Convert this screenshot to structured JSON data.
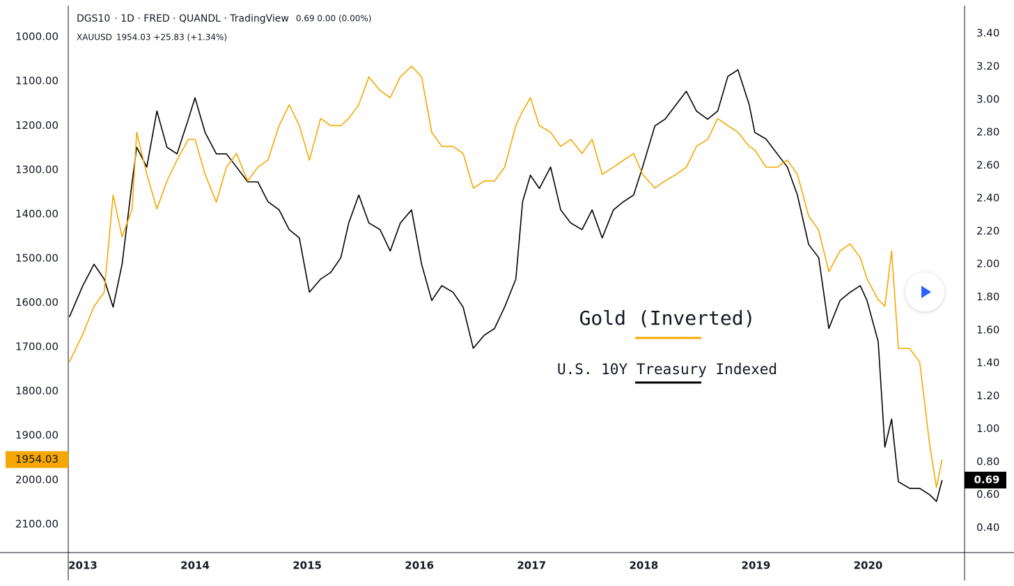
{
  "chart_data": {
    "type": "line",
    "series": [
      {
        "name": "DGS10",
        "details": "· 1D · FRED · QUANDL · TradingView",
        "quote": "0.69 0.00 (0.00%)",
        "color": "#000000",
        "axis": "y2",
        "values": [
          1.68,
          1.87,
          2.0,
          1.91,
          1.74,
          2.0,
          2.5,
          2.71,
          2.59,
          2.93,
          2.71,
          2.67,
          2.88,
          3.01,
          2.8,
          2.67,
          2.67,
          2.59,
          2.5,
          2.5,
          2.38,
          2.33,
          2.21,
          2.16,
          1.83,
          1.91,
          1.95,
          2.04,
          2.25,
          2.42,
          2.25,
          2.21,
          2.08,
          2.25,
          2.33,
          2.0,
          1.78,
          1.87,
          1.83,
          1.74,
          1.49,
          1.57,
          1.61,
          1.74,
          1.91,
          2.38,
          2.54,
          2.46,
          2.59,
          2.33,
          2.25,
          2.21,
          2.33,
          2.16,
          2.33,
          2.38,
          2.42,
          2.59,
          2.84,
          2.88,
          2.97,
          3.05,
          2.93,
          2.88,
          2.93,
          3.14,
          3.18,
          2.97,
          2.8,
          2.76,
          2.67,
          2.59,
          2.42,
          2.12,
          2.04,
          1.61,
          1.78,
          1.83,
          1.87,
          1.78,
          1.53,
          0.89,
          1.06,
          0.68,
          0.64,
          0.64,
          0.6,
          0.56,
          0.69
        ]
      },
      {
        "name": "XAUUSD",
        "quote": "1954.03 +25.83 (+1.34%)",
        "color": "#f5a700",
        "axis": "y",
        "values": [
          1734,
          1671,
          1608,
          1577,
          1357,
          1451,
          1388,
          1215,
          1310,
          1388,
          1325,
          1278,
          1231,
          1231,
          1310,
          1373,
          1294,
          1263,
          1325,
          1294,
          1278,
          1200,
          1153,
          1200,
          1278,
          1184,
          1200,
          1200,
          1184,
          1153,
          1090,
          1121,
          1137,
          1090,
          1066,
          1090,
          1215,
          1247,
          1247,
          1263,
          1341,
          1325,
          1325,
          1294,
          1200,
          1168,
          1137,
          1200,
          1215,
          1247,
          1231,
          1263,
          1231,
          1310,
          1294,
          1278,
          1263,
          1310,
          1341,
          1325,
          1310,
          1294,
          1247,
          1231,
          1184,
          1200,
          1215,
          1247,
          1255,
          1294,
          1294,
          1278,
          1310,
          1404,
          1436,
          1530,
          1483,
          1467,
          1498,
          1546,
          1593,
          1608,
          1483,
          1703,
          1703,
          1734,
          1923,
          2017,
          1954.03
        ]
      }
    ],
    "x": [
      2012.88,
      2013.0,
      2013.1,
      2013.19,
      2013.27,
      2013.35,
      2013.44,
      2013.48,
      2013.57,
      2013.66,
      2013.75,
      2013.84,
      2013.94,
      2014.0,
      2014.09,
      2014.19,
      2014.28,
      2014.37,
      2014.47,
      2014.56,
      2014.65,
      2014.75,
      2014.84,
      2014.93,
      2015.02,
      2015.12,
      2015.21,
      2015.3,
      2015.37,
      2015.46,
      2015.55,
      2015.65,
      2015.74,
      2015.83,
      2015.93,
      2016.02,
      2016.11,
      2016.2,
      2016.3,
      2016.39,
      2016.48,
      2016.58,
      2016.67,
      2016.76,
      2016.86,
      2016.92,
      2016.99,
      2017.07,
      2017.17,
      2017.26,
      2017.35,
      2017.45,
      2017.54,
      2017.63,
      2017.73,
      2017.82,
      2017.91,
      2017.99,
      2018.1,
      2018.19,
      2018.29,
      2018.38,
      2018.47,
      2018.57,
      2018.66,
      2018.75,
      2018.84,
      2018.94,
      2018.99,
      2019.09,
      2019.19,
      2019.28,
      2019.37,
      2019.47,
      2019.56,
      2019.65,
      2019.75,
      2019.84,
      2019.93,
      2019.99,
      2020.09,
      2020.15,
      2020.21,
      2020.27,
      2020.37,
      2020.46,
      2020.55,
      2020.61,
      2020.66
    ],
    "xlim": [
      2012.87,
      2020.86
    ],
    "xticks": [
      2013,
      2014,
      2015,
      2016,
      2017,
      2018,
      2019,
      2020
    ],
    "ylim": [
      929,
      2164
    ],
    "y_inverted": true,
    "yticks": [
      {
        "value": 1000,
        "label": "1000.00"
      },
      {
        "value": 1100,
        "label": "1100.00"
      },
      {
        "value": 1200,
        "label": "1200.00"
      },
      {
        "value": 1300,
        "label": "1300.00"
      },
      {
        "value": 1400,
        "label": "1400.00"
      },
      {
        "value": 1500,
        "label": "1500.00"
      },
      {
        "value": 1600,
        "label": "1600.00"
      },
      {
        "value": 1700,
        "label": "1700.00"
      },
      {
        "value": 1800,
        "label": "1800.00"
      },
      {
        "value": 1900,
        "label": "1900.00"
      },
      {
        "value": 2000,
        "label": "2000.00"
      },
      {
        "value": 2100,
        "label": "2100.00"
      }
    ],
    "y2lim": [
      0.25,
      3.57
    ],
    "y2ticks": [
      {
        "value": 3.4,
        "label": "3.40"
      },
      {
        "value": 3.2,
        "label": "3.20"
      },
      {
        "value": 3.0,
        "label": "3.00"
      },
      {
        "value": 2.8,
        "label": "2.80"
      },
      {
        "value": 2.6,
        "label": "2.60"
      },
      {
        "value": 2.4,
        "label": "2.40"
      },
      {
        "value": 2.2,
        "label": "2.20"
      },
      {
        "value": 2.0,
        "label": "2.00"
      },
      {
        "value": 1.8,
        "label": "1.80"
      },
      {
        "value": 1.6,
        "label": "1.60"
      },
      {
        "value": 1.4,
        "label": "1.40"
      },
      {
        "value": 1.2,
        "label": "1.20"
      },
      {
        "value": 1.0,
        "label": "1.00"
      },
      {
        "value": 0.8,
        "label": "0.80"
      },
      {
        "value": 0.6,
        "label": "0.60"
      },
      {
        "value": 0.4,
        "label": "0.40"
      }
    ],
    "grid": false,
    "annotations": [
      "Gold (Inverted)",
      "U.S. 10Y Treasury Indexed"
    ]
  }
}
